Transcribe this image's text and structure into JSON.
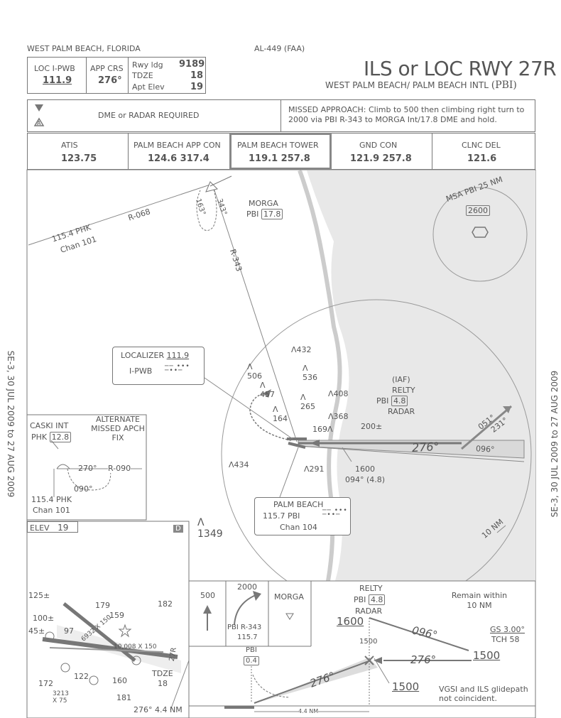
{
  "header": {
    "location": "WEST PALM BEACH, FLORIDA",
    "chart_id": "AL-449 (FAA)",
    "title": "ILS or LOC RWY 27R",
    "airport": "WEST PALM BEACH/ PALM BEACH INTL",
    "airport_code": "(PBI)"
  },
  "briefing": {
    "loc_label": "LOC I-PWB",
    "loc_freq": "111.9",
    "app_crs_label": "APP CRS",
    "app_crs": "276°",
    "rwy_ldg_label": "Rwy ldg",
    "rwy_ldg": "9189",
    "tdze_label": "TDZE",
    "tdze": "18",
    "apt_elev_label": "Apt Elev",
    "apt_elev": "19",
    "dme_note": "DME or RADAR REQUIRED",
    "missed_approach": "MISSED APPROACH: Climb to 500 then climbing right turn to 2000 via PBI R-343 to MORGA Int/17.8 DME and hold."
  },
  "comms": [
    {
      "label": "ATIS",
      "freq": "123.75"
    },
    {
      "label": "PALM BEACH APP CON",
      "freq": "124.6 317.4"
    },
    {
      "label": "PALM BEACH TOWER",
      "freq": "119.1 257.8"
    },
    {
      "label": "GND CON",
      "freq": "121.9 257.8"
    },
    {
      "label": "CLNC DEL",
      "freq": "121.6"
    }
  ],
  "plan": {
    "msa_label": "MSA PBI 25 NM",
    "msa_alt": "2600",
    "morga_name": "MORGA",
    "morga_pbi": "PBI",
    "morga_dme": "17.8",
    "r068": "R-068",
    "r343": "R-343",
    "phk_freq": "115.4 PHK",
    "phk_chan": "Chan 101",
    "hold_343": "343°",
    "hold_163": "163°",
    "localizer_label": "LOCALIZER",
    "localizer_freq": "111.9",
    "localizer_id": "I-PWB",
    "relty_iaf": "(IAF)",
    "relty_name": "RELTY",
    "relty_pbi": "PBI",
    "relty_dme": "4.8",
    "relty_radar": "RADAR",
    "obstacles": [
      "432",
      "536",
      "506",
      "457",
      "265",
      "408",
      "368",
      "164",
      "169",
      "434",
      "291",
      "1349"
    ],
    "alt_200": "200±",
    "crs_276": "276°",
    "crs_096": "096°",
    "crs_051": "051°",
    "crs_231": "231°",
    "alt_1600": "1600",
    "dist_094": "094° (4.8)",
    "palm_beach": "PALM BEACH",
    "pbi_freq": "115.7",
    "pbi_id": "PBI",
    "pbi_chan": "Chan 104",
    "ten_nm": "10 NM",
    "caski_name": "CASKI INT",
    "caski_phk": "PHK",
    "caski_dme": "12.8",
    "alternate_fix": "ALTERNATE MISSED APCH FIX",
    "caski_270": "270°",
    "caski_r090": "R-090",
    "caski_090": "090°",
    "caski_freq": "115.4 PHK",
    "caski_chan": "Chan 101",
    "side_note": "SE-3, 30 JUL 2009 to 27 AUG 2009"
  },
  "airport": {
    "elev_label": "ELEV",
    "elev": "19",
    "d_badge": "D",
    "labels": [
      "125±",
      "100±",
      "45±",
      "179",
      "159",
      "182",
      "97",
      "6932 X 150",
      "10,008 X 150",
      "27R",
      "TDZE",
      "18",
      "122",
      "160",
      "172",
      "3213",
      "X 75",
      "181"
    ],
    "bottom": "276° 4.4 NM"
  },
  "profile": {
    "alt_500": "500",
    "alt_2000": "2000",
    "pbi_r343": "PBI R-343",
    "pbi_r343_freq": "115.7",
    "morga": "MORGA",
    "relty": "RELTY",
    "relty_pbi": "PBI",
    "relty_dme": "4.8",
    "relty_radar": "RADAR",
    "remain": "Remain within 10 NM",
    "alt_1600": "1600",
    "crs_096": "096°",
    "gs": "GS 3.00°",
    "tch": "TCH 58",
    "alt_1500_small": "1500",
    "alt_1500": "1500",
    "pbi": "PBI",
    "pbi_dme": "0.4",
    "crs_276": "276°",
    "crs_276b": "276°",
    "alt_1500_b": "1500",
    "vgsi": "VGSI and ILS glidepath not coincident.",
    "dist": "4.4 NM"
  }
}
